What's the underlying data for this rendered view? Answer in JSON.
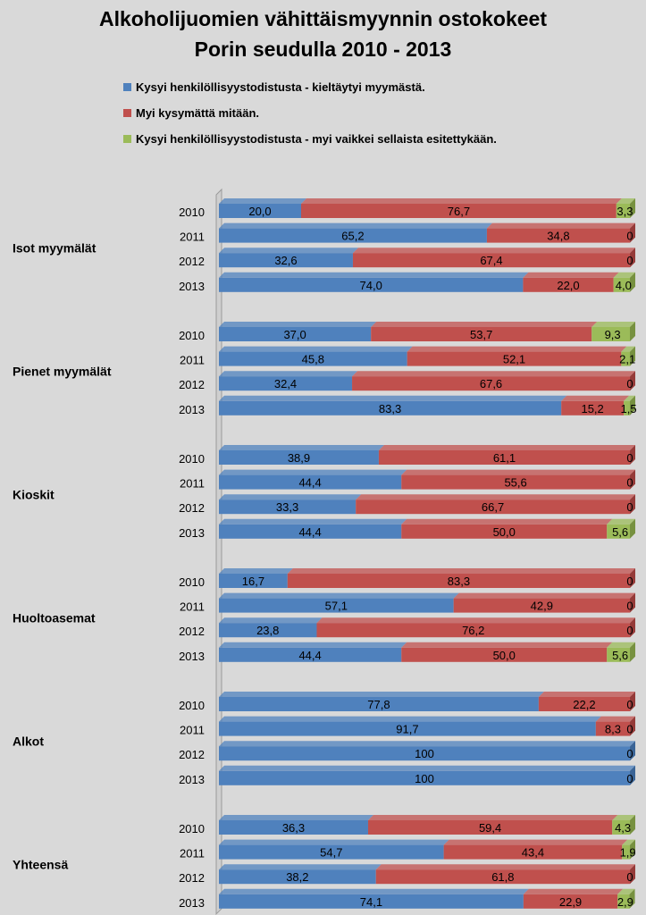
{
  "chart_data": {
    "type": "bar",
    "orientation": "horizontal",
    "stacking": "percent-stacked",
    "title": [
      "Alkoholijuomien vähittäismyynnin ostokokeet",
      "Porin seudulla 2010 - 2013"
    ],
    "xlim": [
      0,
      100
    ],
    "legend": {
      "placement": "top",
      "entries": [
        "Kysyi henkilöllisyystodistusta - kieltäytyi myymästä.",
        "Myi kysymättä mitään.",
        "Kysyi henkilöllisyystodistusta - myi vaikkei sellaista esitettykään."
      ]
    },
    "colors": [
      "#4f81bd",
      "#c0504d",
      "#9bbb59"
    ],
    "groups": [
      {
        "name": "Isot myymälät",
        "rows": [
          {
            "year": "2010",
            "values": [
              20.0,
              76.7,
              3.3
            ],
            "labels": [
              "20,0",
              "76,7",
              "3,3"
            ]
          },
          {
            "year": "2011",
            "values": [
              65.2,
              34.8,
              0
            ],
            "labels": [
              "65,2",
              "34,8",
              "0"
            ]
          },
          {
            "year": "2012",
            "values": [
              32.6,
              67.4,
              0
            ],
            "labels": [
              "32,6",
              "67,4",
              "0"
            ]
          },
          {
            "year": "2013",
            "values": [
              74.0,
              22.0,
              4.0
            ],
            "labels": [
              "74,0",
              "22,0",
              "4,0"
            ]
          }
        ]
      },
      {
        "name": "Pienet myymälät",
        "rows": [
          {
            "year": "2010",
            "values": [
              37.0,
              53.7,
              9.3
            ],
            "labels": [
              "37,0",
              "53,7",
              "9,3"
            ]
          },
          {
            "year": "2011",
            "values": [
              45.8,
              52.1,
              2.1
            ],
            "labels": [
              "45,8",
              "52,1",
              "2,1"
            ]
          },
          {
            "year": "2012",
            "values": [
              32.4,
              67.6,
              0
            ],
            "labels": [
              "32,4",
              "67,6",
              "0"
            ]
          },
          {
            "year": "2013",
            "values": [
              83.3,
              15.2,
              1.5
            ],
            "labels": [
              "83,3",
              "15,2",
              "1,5"
            ]
          }
        ]
      },
      {
        "name": "Kioskit",
        "rows": [
          {
            "year": "2010",
            "values": [
              38.9,
              61.1,
              0
            ],
            "labels": [
              "38,9",
              "61,1",
              "0"
            ]
          },
          {
            "year": "2011",
            "values": [
              44.4,
              55.6,
              0
            ],
            "labels": [
              "44,4",
              "55,6",
              "0"
            ]
          },
          {
            "year": "2012",
            "values": [
              33.3,
              66.7,
              0
            ],
            "labels": [
              "33,3",
              "66,7",
              "0"
            ]
          },
          {
            "year": "2013",
            "values": [
              44.4,
              50.0,
              5.6
            ],
            "labels": [
              "44,4",
              "50,0",
              "5,6"
            ]
          }
        ]
      },
      {
        "name": "Huoltoasemat",
        "rows": [
          {
            "year": "2010",
            "values": [
              16.7,
              83.3,
              0
            ],
            "labels": [
              "16,7",
              "83,3",
              "0"
            ]
          },
          {
            "year": "2011",
            "values": [
              57.1,
              42.9,
              0
            ],
            "labels": [
              "57,1",
              "42,9",
              "0"
            ]
          },
          {
            "year": "2012",
            "values": [
              23.8,
              76.2,
              0
            ],
            "labels": [
              "23,8",
              "76,2",
              "0"
            ]
          },
          {
            "year": "2013",
            "values": [
              44.4,
              50.0,
              5.6
            ],
            "labels": [
              "44,4",
              "50,0",
              "5,6"
            ]
          }
        ]
      },
      {
        "name": "Alkot",
        "rows": [
          {
            "year": "2010",
            "values": [
              77.8,
              22.2,
              0
            ],
            "labels": [
              "77,8",
              "22,2",
              "0"
            ]
          },
          {
            "year": "2011",
            "values": [
              91.7,
              8.3,
              0
            ],
            "labels": [
              "91,7",
              "8,3",
              "0"
            ]
          },
          {
            "year": "2012",
            "values": [
              100,
              0,
              0
            ],
            "labels": [
              "100",
              "",
              "0"
            ]
          },
          {
            "year": "2013",
            "values": [
              100,
              0,
              0
            ],
            "labels": [
              "100",
              "",
              "0"
            ]
          }
        ]
      },
      {
        "name": "Yhteensä",
        "rows": [
          {
            "year": "2010",
            "values": [
              36.3,
              59.4,
              4.3
            ],
            "labels": [
              "36,3",
              "59,4",
              "4,3"
            ]
          },
          {
            "year": "2011",
            "values": [
              54.7,
              43.4,
              1.9
            ],
            "labels": [
              "54,7",
              "43,4",
              "1,9"
            ]
          },
          {
            "year": "2012",
            "values": [
              38.2,
              61.8,
              0
            ],
            "labels": [
              "38,2",
              "61,8",
              "0"
            ]
          },
          {
            "year": "2013",
            "values": [
              74.1,
              22.9,
              2.9
            ],
            "labels": [
              "74,1",
              "22,9",
              "2,9"
            ]
          }
        ]
      }
    ]
  }
}
